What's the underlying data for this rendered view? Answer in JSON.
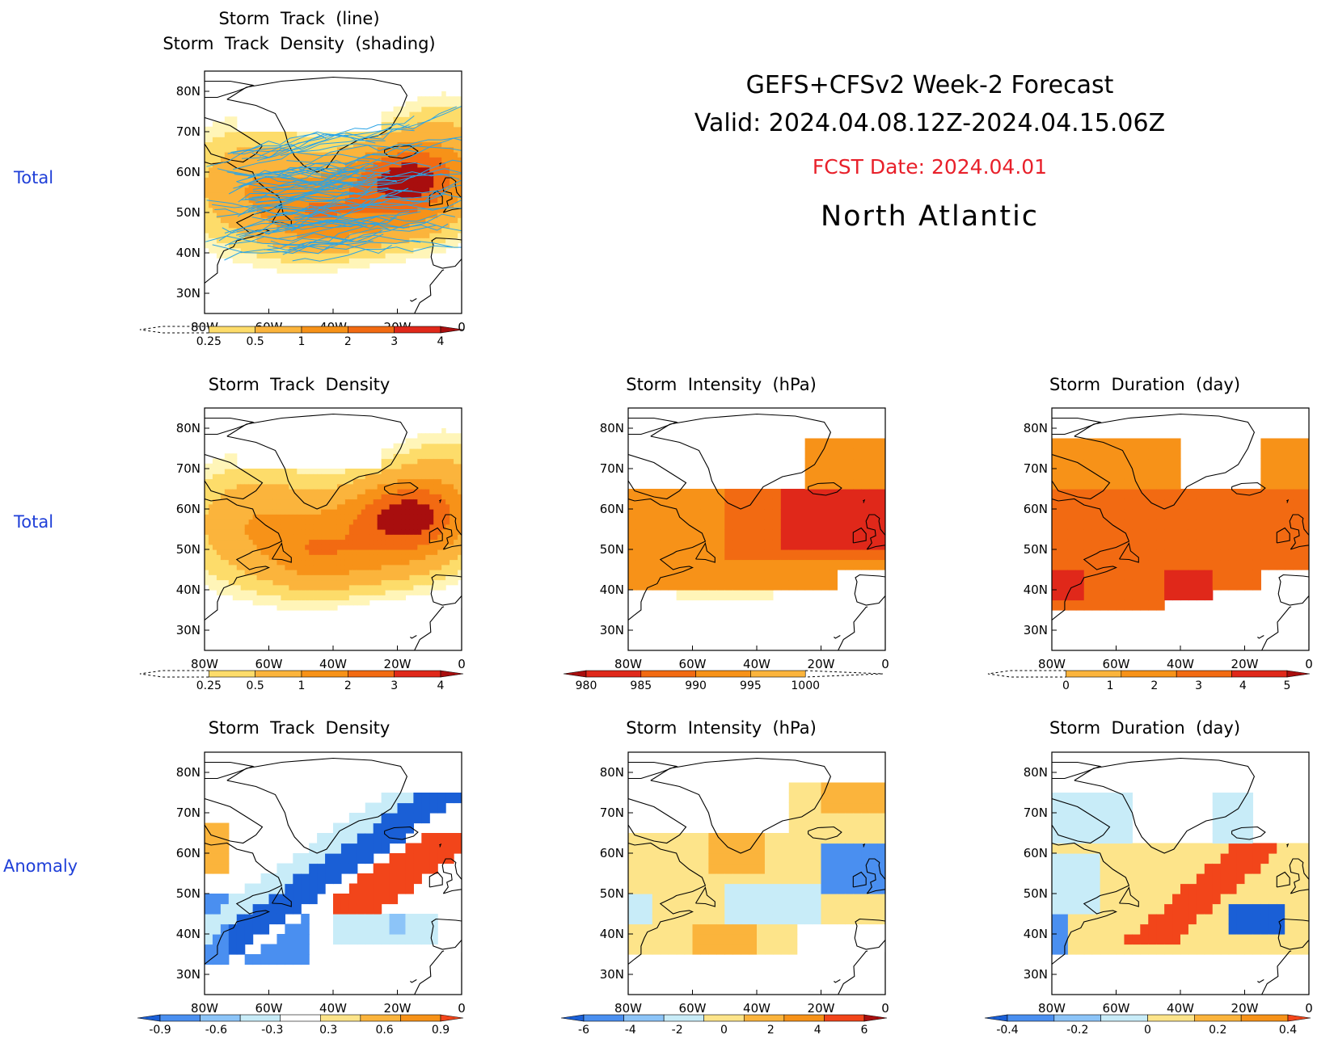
{
  "header": {
    "title_line1": "GEFS+CFSv2  Week-2  Forecast",
    "title_line2": "Valid:  2024.04.08.12Z-2024.04.15.06Z",
    "fcst_date": "FCST Date: 2024.04.01",
    "region": "North  Atlantic"
  },
  "row_labels": [
    "Total",
    "Total",
    "Anomaly"
  ],
  "axes": {
    "lon_ticks": [
      "80W",
      "60W",
      "40W",
      "20W",
      "0"
    ],
    "lat_ticks": [
      "80N",
      "70N",
      "60N",
      "50N",
      "40N",
      "30N"
    ]
  },
  "colors": {
    "row_label": "#1f3fd8",
    "fcst_date": "#e8202a",
    "track_line": "#2aa4e6",
    "land_outline": "#000000"
  },
  "panels": [
    {
      "id": "track-lines",
      "title": "Storm  Track  (line)\nStorm  Track  Density  (shading)",
      "variable": "storm track density with storm track lines",
      "colorbar": {
        "labels": [
          "0.25",
          "0.5",
          "1",
          "2",
          "3",
          "4"
        ],
        "colors": [
          "#fff5b8",
          "#fddc6a",
          "#fbb43c",
          "#f79218",
          "#f26a12",
          "#e0281a",
          "#a80e0e"
        ],
        "open_low": true
      }
    },
    {
      "id": "density-total",
      "title": "Storm  Track  Density",
      "variable": "storm track density total",
      "colorbar": {
        "labels": [
          "0.25",
          "0.5",
          "1",
          "2",
          "3",
          "4"
        ],
        "colors": [
          "#fff5b8",
          "#fddc6a",
          "#fbb43c",
          "#f79218",
          "#f26a12",
          "#e0281a",
          "#a80e0e"
        ],
        "open_low": true
      }
    },
    {
      "id": "intensity-total",
      "title": "Storm  Intensity  (hPa)",
      "variable": "storm intensity total",
      "colorbar": {
        "labels": [
          "980",
          "985",
          "990",
          "995",
          "1000"
        ],
        "colors": [
          "#a80e0e",
          "#e0281a",
          "#f26a12",
          "#f79218",
          "#fbb43c",
          "#fff5b8"
        ],
        "open_high": true
      }
    },
    {
      "id": "duration-total",
      "title": "Storm  Duration  (day)",
      "variable": "storm duration total",
      "colorbar": {
        "labels": [
          "0",
          "1",
          "2",
          "3",
          "4",
          "5"
        ],
        "colors": [
          "#fff5b8",
          "#fbb43c",
          "#f79218",
          "#f26a12",
          "#e0281a",
          "#a80e0e"
        ],
        "open_low": true
      }
    },
    {
      "id": "density-anomaly",
      "title": "Storm  Track  Density",
      "variable": "storm track density anomaly",
      "colorbar": {
        "labels": [
          "-0.9",
          "-0.6",
          "-0.3",
          "0.3",
          "0.6",
          "0.9"
        ],
        "colors": [
          "#1a5fd6",
          "#4a8ff0",
          "#8cc4f8",
          "#c8ecf8",
          "#ffffff",
          "#fde48a",
          "#fbb43c",
          "#f79218",
          "#f2451a"
        ]
      }
    },
    {
      "id": "intensity-anomaly",
      "title": "Storm  Intensity  (hPa)",
      "variable": "storm intensity anomaly",
      "colorbar": {
        "labels": [
          "-6",
          "-4",
          "-2",
          "0",
          "2",
          "4",
          "6"
        ],
        "colors": [
          "#1a5fd6",
          "#4a8ff0",
          "#8cc4f8",
          "#c8ecf8",
          "#fde48a",
          "#fbb43c",
          "#f79218",
          "#f2451a",
          "#a80e0e"
        ]
      }
    },
    {
      "id": "duration-anomaly",
      "title": "Storm  Duration  (day)",
      "variable": "storm duration anomaly",
      "colorbar": {
        "labels": [
          "-0.4",
          "-0.2",
          "0",
          "0.2",
          "0.4"
        ],
        "colors": [
          "#1a5fd6",
          "#4a8ff0",
          "#8cc4f8",
          "#c8ecf8",
          "#fde48a",
          "#fbb43c",
          "#f79218",
          "#f2451a"
        ]
      }
    }
  ]
}
